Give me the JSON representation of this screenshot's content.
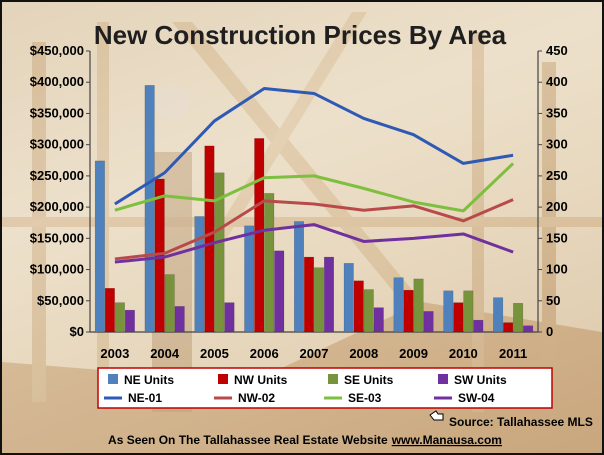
{
  "chart_data": {
    "type": "bar",
    "title": "New Construction Prices By Area",
    "categories": [
      "2003",
      "2004",
      "2005",
      "2006",
      "2007",
      "2008",
      "2009",
      "2010",
      "2011"
    ],
    "y_left_ticks": [
      "$0",
      "$50,000",
      "$100,000",
      "$150,000",
      "$200,000",
      "$250,000",
      "$300,000",
      "$350,000",
      "$400,000",
      "$450,000"
    ],
    "y_right_ticks": [
      "0",
      "50",
      "100",
      "150",
      "200",
      "250",
      "300",
      "350",
      "400",
      "450"
    ],
    "ylim_left": [
      0,
      450000
    ],
    "ylim_right": [
      0,
      450
    ],
    "bar_series": [
      {
        "name": "NE Units",
        "color": "#4f81bd",
        "values": [
          274,
          395,
          185,
          170,
          177,
          110,
          87,
          66,
          55
        ]
      },
      {
        "name": "NW Units",
        "color": "#c00000",
        "values": [
          70,
          245,
          298,
          310,
          120,
          82,
          67,
          47,
          15
        ]
      },
      {
        "name": "SE Units",
        "color": "#77933c",
        "values": [
          47,
          92,
          255,
          222,
          103,
          68,
          85,
          66,
          46
        ]
      },
      {
        "name": "SW Units",
        "color": "#7030a0",
        "values": [
          35,
          41,
          47,
          130,
          120,
          39,
          33,
          19,
          10
        ]
      }
    ],
    "line_series": [
      {
        "name": "NE-01",
        "color": "#2e59b5",
        "values": [
          205000,
          255000,
          338000,
          390000,
          382000,
          342000,
          316000,
          270000,
          283000
        ]
      },
      {
        "name": "NW-02",
        "color": "#b84a4a",
        "values": [
          117000,
          126000,
          160000,
          210000,
          205000,
          195000,
          202000,
          178000,
          212000
        ]
      },
      {
        "name": "SE-03",
        "color": "#7dbf3e",
        "values": [
          195000,
          218000,
          210000,
          247000,
          250000,
          230000,
          208000,
          194000,
          270000
        ]
      },
      {
        "name": "SW-04",
        "color": "#70309e",
        "values": [
          112000,
          120000,
          143000,
          163000,
          172000,
          145000,
          150000,
          157000,
          128000
        ]
      }
    ],
    "grid": false,
    "legend_position": "bottom"
  },
  "credits": {
    "source": "Source: Tallahassee MLS",
    "seen_on": "As Seen On The Tallahassee Real Estate Website",
    "website": "www.Manausa.com"
  },
  "icons": {
    "source_icon": "pointing-hand-icon"
  }
}
